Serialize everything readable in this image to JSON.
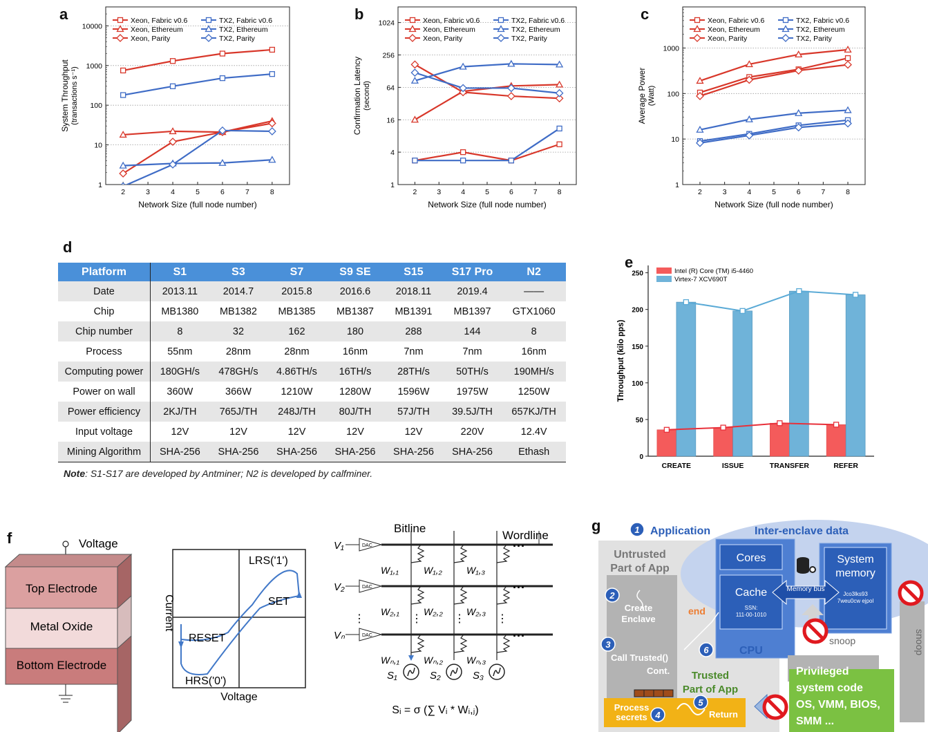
{
  "panels": {
    "a": "a",
    "b": "b",
    "c": "c",
    "d": "d",
    "e": "e",
    "f": "f",
    "g": "g"
  },
  "legend_abc": [
    "Xeon, Fabric v0.6",
    "Xeon, Ethereum",
    "Xeon, Parity",
    "TX2, Fabric v0.6",
    "TX2, Ethereum",
    "TX2, Parity"
  ],
  "colors": {
    "xeon": "#d8372a",
    "tx2": "#3f6cc6",
    "table_header": "#4a90d9",
    "intel": "#f45b5b",
    "virtex": "#6fb3d9"
  },
  "chart_data": [
    {
      "type": "line",
      "id": "a",
      "xlabel": "Network Size (full node number)",
      "ylabel": "System Throughput",
      "ylabel2": "(transactions s⁻¹)",
      "xticks": [
        "2",
        "3",
        "4",
        "5",
        "6",
        "7",
        "8"
      ],
      "yticks": [
        "1",
        "10",
        "100",
        "1000",
        "10000"
      ],
      "yscale": "log",
      "ylim": [
        1,
        30000
      ],
      "xlim": [
        1.3,
        8.7
      ],
      "x": [
        2,
        4,
        6,
        8
      ],
      "series": [
        {
          "name": "Xeon, Fabric v0.6",
          "values": [
            750,
            1300,
            2000,
            2500
          ]
        },
        {
          "name": "Xeon, Ethereum",
          "values": [
            18,
            22,
            21,
            40
          ]
        },
        {
          "name": "Xeon, Parity",
          "values": [
            1.9,
            12,
            21,
            35
          ]
        },
        {
          "name": "TX2, Fabric v0.6",
          "values": [
            180,
            300,
            480,
            610
          ]
        },
        {
          "name": "TX2, Ethereum",
          "values": [
            3,
            3.4,
            3.5,
            4.2
          ]
        },
        {
          "name": "TX2, Parity",
          "values": [
            0.9,
            3.2,
            23,
            22
          ]
        }
      ]
    },
    {
      "type": "line",
      "id": "b",
      "xlabel": "Network Size (full node number)",
      "ylabel": "Confirmation Latency",
      "ylabel2": "(second)",
      "xticks": [
        "2",
        "3",
        "4",
        "5",
        "6",
        "7",
        "8"
      ],
      "yticks": [
        "1",
        "4",
        "16",
        "64",
        "256",
        "1024"
      ],
      "yscale": "log2",
      "ylim": [
        1,
        2000
      ],
      "xlim": [
        1.3,
        8.7
      ],
      "x": [
        2,
        4,
        6,
        8
      ],
      "series": [
        {
          "name": "Xeon, Fabric v0.6",
          "values": [
            2.8,
            4,
            2.8,
            5.6
          ]
        },
        {
          "name": "Xeon, Ethereum",
          "values": [
            16,
            54,
            68,
            72
          ]
        },
        {
          "name": "Xeon, Parity",
          "values": [
            170,
            52,
            44,
            40
          ]
        },
        {
          "name": "TX2, Fabric v0.6",
          "values": [
            2.8,
            2.8,
            2.8,
            11
          ]
        },
        {
          "name": "TX2, Ethereum",
          "values": [
            85,
            155,
            175,
            170
          ]
        },
        {
          "name": "TX2, Parity",
          "values": [
            120,
            62,
            62,
            50
          ]
        }
      ]
    },
    {
      "type": "line",
      "id": "c",
      "xlabel": "Network Size (full node number)",
      "ylabel": "Average Power",
      "ylabel2": "(Watt)",
      "xticks": [
        "2",
        "3",
        "4",
        "5",
        "6",
        "7",
        "8"
      ],
      "yticks": [
        "1",
        "10",
        "100",
        "1000"
      ],
      "yscale": "log",
      "ylim": [
        1,
        8000
      ],
      "xlim": [
        1.3,
        8.7
      ],
      "x": [
        2,
        4,
        6,
        8
      ],
      "series": [
        {
          "name": "Xeon, Fabric v0.6",
          "values": [
            105,
            230,
            340,
            600
          ]
        },
        {
          "name": "Xeon, Ethereum",
          "values": [
            190,
            440,
            720,
            920
          ]
        },
        {
          "name": "Xeon, Parity",
          "values": [
            88,
            200,
            320,
            430
          ]
        },
        {
          "name": "TX2, Fabric v0.6",
          "values": [
            9,
            13,
            20,
            26
          ]
        },
        {
          "name": "TX2, Ethereum",
          "values": [
            16,
            27,
            37,
            43
          ]
        },
        {
          "name": "TX2, Parity",
          "values": [
            8.2,
            12,
            18,
            22
          ]
        }
      ]
    },
    {
      "type": "bar",
      "id": "e",
      "ylabel": "Throughput (kilo pps)",
      "categories": [
        "CREATE",
        "ISSUE",
        "TRANSFER",
        "REFER"
      ],
      "yticks": [
        "0",
        "50",
        "100",
        "150",
        "200",
        "250"
      ],
      "ylim": [
        0,
        260
      ],
      "series": [
        {
          "name": "Intel (R) Core (TM) i5-4460",
          "values": [
            36,
            39,
            45,
            43
          ]
        },
        {
          "name": "Virtex-7 XCV690T",
          "values": [
            210,
            198,
            225,
            220
          ]
        }
      ]
    },
    {
      "type": "table",
      "id": "d",
      "header": [
        "Platform",
        "S1",
        "S3",
        "S7",
        "S9 SE",
        "S15",
        "S17 Pro",
        "N2"
      ],
      "rows": [
        [
          "Date",
          "2013.11",
          "2014.7",
          "2015.8",
          "2016.6",
          "2018.11",
          "2019.4",
          "——"
        ],
        [
          "Chip",
          "MB1380",
          "MB1382",
          "MB1385",
          "MB1387",
          "MB1391",
          "MB1397",
          "GTX1060"
        ],
        [
          "Chip number",
          "8",
          "32",
          "162",
          "180",
          "288",
          "144",
          "8"
        ],
        [
          "Process",
          "55nm",
          "28nm",
          "28nm",
          "16nm",
          "7nm",
          "7nm",
          "16nm"
        ],
        [
          "Computing power",
          "180GH/s",
          "478GH/s",
          "4.86TH/s",
          "16TH/s",
          "28TH/s",
          "50TH/s",
          "190MH/s"
        ],
        [
          "Power on wall",
          "360W",
          "366W",
          "1210W",
          "1280W",
          "1596W",
          "1975W",
          "1250W"
        ],
        [
          "Power efficiency",
          "2KJ/TH",
          "765J/TH",
          "248J/TH",
          "80J/TH",
          "57J/TH",
          "39.5J/TH",
          "657KJ/TH"
        ],
        [
          "Input voltage",
          "12V",
          "12V",
          "12V",
          "12V",
          "12V",
          "220V",
          "12.4V"
        ],
        [
          "Mining Algorithm",
          "SHA-256",
          "SHA-256",
          "SHA-256",
          "SHA-256",
          "SHA-256",
          "SHA-256",
          "Ethash"
        ]
      ]
    }
  ],
  "note": {
    "label": "Note",
    "text": ": S1-S17 are developed by Antminer; N2 is developed by calfminer."
  },
  "f": {
    "voltage": "Voltage",
    "top": "Top Electrode",
    "oxide": "Metal Oxide",
    "bottom": "Bottom Electrode",
    "current": "Current",
    "voltage_axis": "Voltage",
    "lrs": "LRS('1')",
    "set": "SET",
    "reset": "RESET",
    "hrs": "HRS('0')",
    "bitline": "Bitline",
    "wordline": "Wordline",
    "dac": "DAC",
    "formula": "Sᵢ = σ (∑ Vᵢ * Wᵢ,ⱼ)"
  },
  "g": {
    "application": "Application",
    "untrusted": "Untrusted",
    "part_of_app": "Part of App",
    "create": "Create",
    "enclave": "Enclave",
    "call_trusted": "Call Trusted()",
    "cont": "Cont.",
    "end": "end",
    "cpu": "CPU",
    "inter_enclave": "Inter-enclave data",
    "cores": "Cores",
    "cache": "Cache",
    "ssn": "SSN:",
    "ssn_val": "111-00-1010",
    "memory_bus": "Memory bus",
    "system": "System",
    "memory": "memory",
    "mem_data1": "Jco3lks93",
    "mem_data2": "7weu0cw ejpol",
    "snoop": "snoop",
    "trusted": "Trusted",
    "trusted_part": "Part of App",
    "process": "Process",
    "secrets": "secrets",
    "return": "Return",
    "priv1": "Privileged",
    "priv2": "system code",
    "priv3": "OS, VMM, BIOS,",
    "priv4": "SMM ...",
    "steps": [
      "1",
      "2",
      "3",
      "4",
      "5",
      "6"
    ]
  }
}
